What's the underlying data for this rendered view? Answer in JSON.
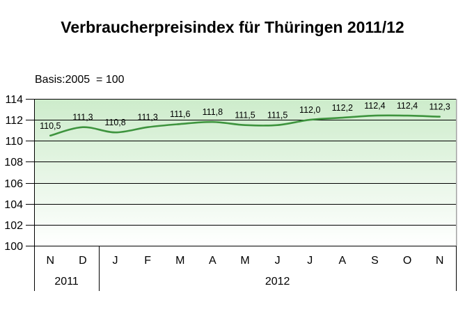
{
  "title": "Verbraucherpreisindex für Thüringen 2011/12",
  "basis_label": "Basis:2005  = 100",
  "chart_data": {
    "type": "line",
    "x": [
      "N",
      "D",
      "J",
      "F",
      "M",
      "A",
      "M",
      "J",
      "J",
      "A",
      "S",
      "O",
      "N"
    ],
    "values": [
      110.5,
      111.3,
      110.8,
      111.3,
      111.6,
      111.8,
      111.5,
      111.5,
      112.0,
      112.2,
      112.4,
      112.4,
      112.3
    ],
    "point_labels": [
      "110,5",
      "111,3",
      "110,8",
      "111,3",
      "111,6",
      "111,8",
      "111,5",
      "111,5",
      "112,0",
      "112,2",
      "112,4",
      "112,4",
      "112,3"
    ],
    "year_sections": [
      {
        "label": "2011",
        "start": 0,
        "end": 1
      },
      {
        "label": "2012",
        "start": 2,
        "end": 12
      }
    ],
    "ylim": [
      100,
      114
    ],
    "ytick_step": 2,
    "ytick_labels": [
      "100",
      "102",
      "104",
      "106",
      "108",
      "110",
      "112",
      "114"
    ],
    "grid": true,
    "legend": "none",
    "title": "Verbraucherpreisindex für Thüringen 2011/12",
    "subtitle": "Basis:2005 = 100",
    "colors": {
      "line": "#3e943e",
      "grid": "#000000",
      "plot_border_right": "#a3a3a3",
      "plot_bg_top": "#cdeccb",
      "plot_bg_bottom": "#ffffff",
      "text": "#000000"
    }
  }
}
